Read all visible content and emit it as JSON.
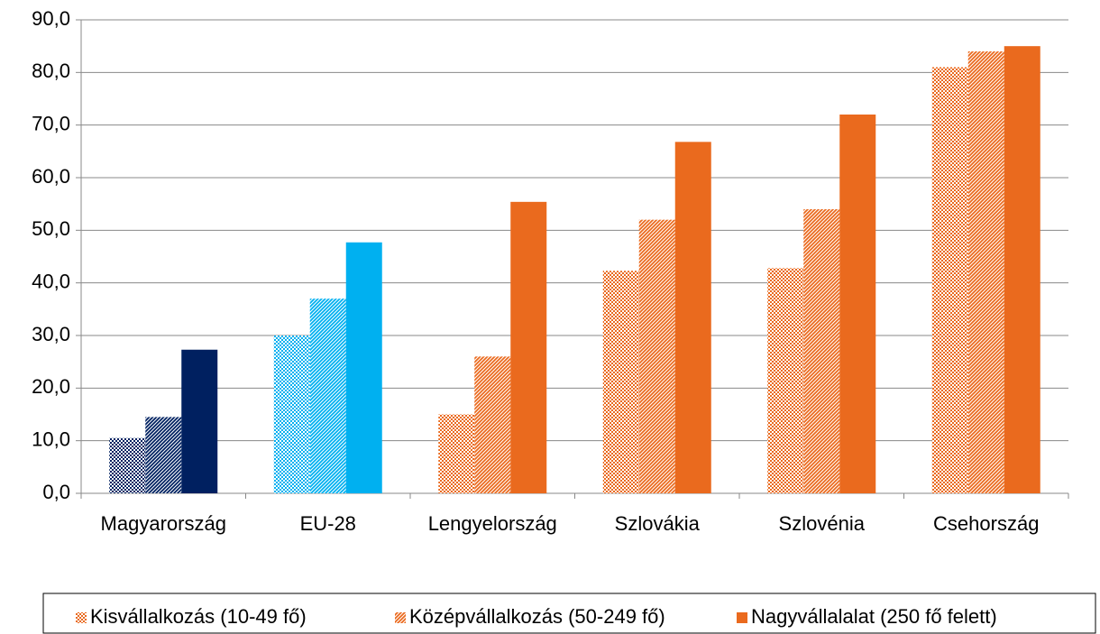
{
  "chart_data": {
    "type": "bar",
    "categories": [
      "Magyarország",
      "EU-28",
      "Lengyelország",
      "Szlovákia",
      "Szlovénia",
      "Csehország"
    ],
    "category_colors": [
      "#002060",
      "#00b0f0",
      "#ea6a1e",
      "#ea6a1e",
      "#ea6a1e",
      "#ea6a1e"
    ],
    "series": [
      {
        "name": "Kisvállalkozás (10-49 fő)",
        "color": "#ea6a1e",
        "pattern": "dots",
        "values": [
          10.5,
          30.0,
          15.0,
          42.3,
          42.8,
          81.0
        ]
      },
      {
        "name": "Középvállalkozás  (50-249 fő)",
        "color": "#ea6a1e",
        "pattern": "diagonal",
        "values": [
          14.5,
          37.0,
          26.0,
          52.0,
          54.0,
          84.0
        ]
      },
      {
        "name": "Nagyvállalalat (250 fő felett)",
        "color": "#ea6a1e",
        "pattern": "solid",
        "values": [
          27.3,
          47.7,
          55.4,
          66.8,
          72.0,
          85.0
        ]
      }
    ],
    "ylim": [
      0,
      90
    ],
    "yticks": [
      {
        "value": 0,
        "label": "0,0"
      },
      {
        "value": 10,
        "label": "10,0"
      },
      {
        "value": 20,
        "label": "20,0"
      },
      {
        "value": 30,
        "label": "30,0"
      },
      {
        "value": 40,
        "label": "40,0"
      },
      {
        "value": 50,
        "label": "50,0"
      },
      {
        "value": 60,
        "label": "60,0"
      },
      {
        "value": 70,
        "label": "70,0"
      },
      {
        "value": 80,
        "label": "80,0"
      },
      {
        "value": 90,
        "label": "90,0"
      }
    ],
    "grid": true,
    "legend": "bottom"
  }
}
